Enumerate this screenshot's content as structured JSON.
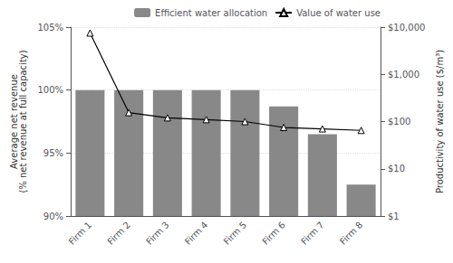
{
  "chart_data": {
    "type": "bar",
    "categories": [
      "Firm 1",
      "Firm 2",
      "Firm 3",
      "Firm 4",
      "Firm 5",
      "Firm 6",
      "Firm 7",
      "Firm 8"
    ],
    "series": [
      {
        "name": "Efficient water allocation",
        "type": "bar",
        "color": "#888888",
        "values": [
          100.0,
          100.0,
          100.0,
          100.0,
          100.0,
          98.7,
          96.5,
          92.5
        ]
      },
      {
        "name": "Value of water use",
        "type": "line",
        "axis": "y2",
        "color": "#000000",
        "marker": "triangle",
        "values": [
          7500,
          155,
          120,
          110,
          100,
          75,
          70,
          65
        ]
      }
    ],
    "ylabel": "Average net revenue\n(% net revenue at full capacity)",
    "y2label": "Productivity of water use ($/m³)",
    "ylim": [
      90,
      105
    ],
    "yticks": [
      {
        "value": 90,
        "label": "90%"
      },
      {
        "value": 95,
        "label": "95%"
      },
      {
        "value": 100,
        "label": "100%"
      },
      {
        "value": 105,
        "label": "105%"
      }
    ],
    "y2lim": [
      1,
      10000
    ],
    "y2ticks": [
      {
        "value": 1,
        "label": "$1"
      },
      {
        "value": 10,
        "label": "$10"
      },
      {
        "value": 100,
        "label": "$100"
      },
      {
        "value": 1000,
        "label": "$1,000"
      },
      {
        "value": 10000,
        "label": "$10,000"
      }
    ],
    "log": "y2",
    "grid": true,
    "legend": "upper right"
  }
}
